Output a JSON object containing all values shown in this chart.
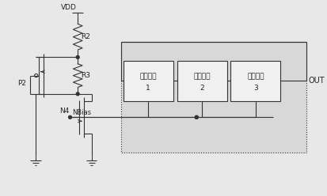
{
  "bg_color": "#e8e8e8",
  "line_color": "#333333",
  "box_bg": "#d8d8d8",
  "inner_bg": "#f0f0f0",
  "text_color": "#222222",
  "vdd_label": "VDD",
  "r2_label": "R2",
  "r3_label": "R3",
  "p2_label": "P2",
  "n4_label": "N4",
  "nbias_label": "NBias",
  "out_label": "OUT",
  "delay_labels": [
    [
      "延迟单元",
      "1"
    ],
    [
      "延迟单元",
      "2"
    ],
    [
      "延迟单元",
      "3"
    ]
  ],
  "figsize": [
    4.13,
    2.48
  ],
  "dpi": 100
}
